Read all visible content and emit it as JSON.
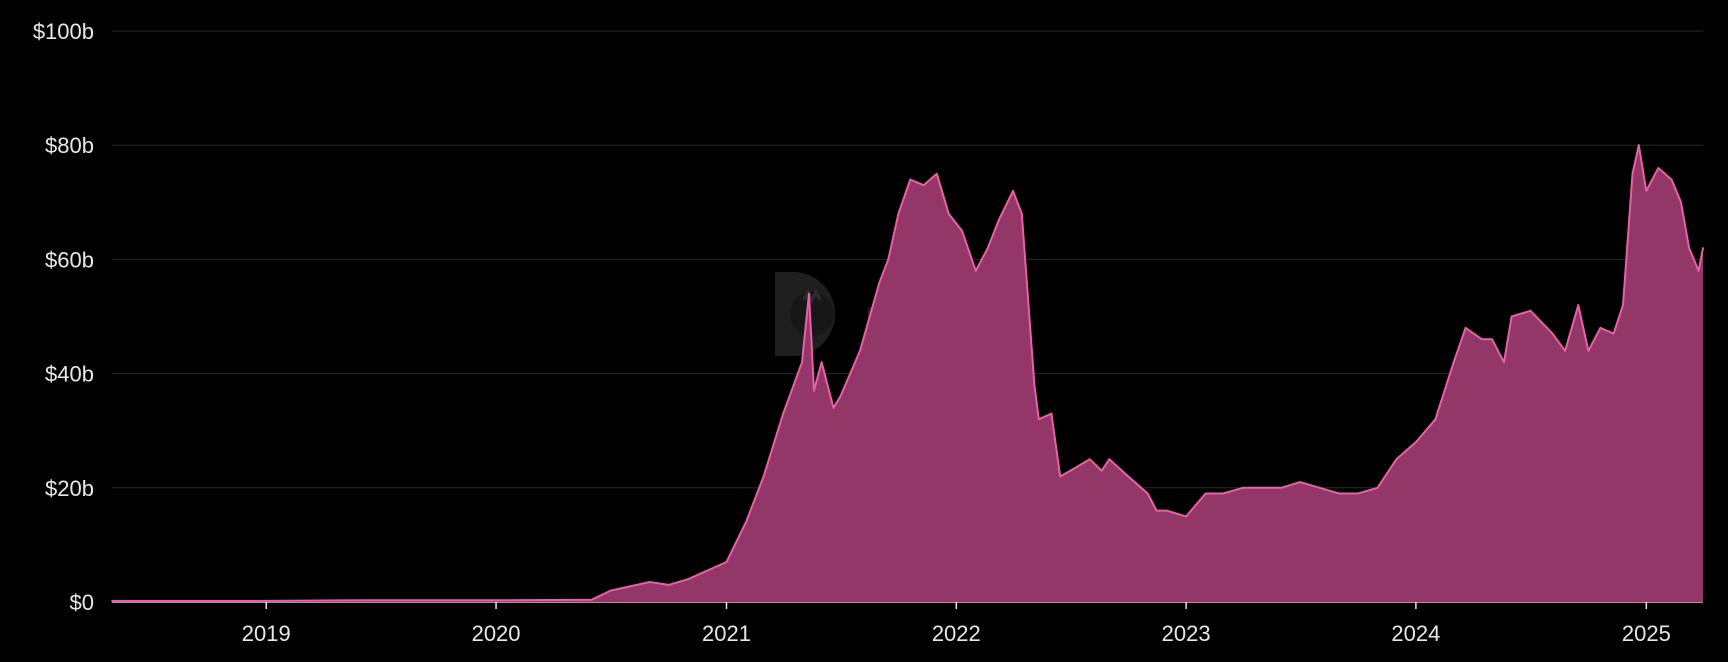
{
  "chart_data": {
    "type": "area",
    "title": "",
    "xlabel": "",
    "ylabel": "",
    "x_ticks": [
      "2019",
      "2020",
      "2021",
      "2022",
      "2023",
      "2024",
      "2025"
    ],
    "y_ticks": [
      "$0",
      "$20b",
      "$40b",
      "$60b",
      "$80b",
      "$100b"
    ],
    "ylim": [
      0,
      100
    ],
    "xlim": [
      "2018-05-01",
      "2025-04-01"
    ],
    "grid": true,
    "legend": "none",
    "series": [
      {
        "color": "#ea5fa8",
        "fill": "#933668",
        "x": [
          "2018-05-01",
          "2019-01-01",
          "2019-06-01",
          "2020-01-01",
          "2020-06-01",
          "2020-07-01",
          "2020-09-01",
          "2020-10-01",
          "2020-11-01",
          "2021-01-01",
          "2021-02-01",
          "2021-03-01",
          "2021-04-01",
          "2021-05-01",
          "2021-05-12",
          "2021-05-20",
          "2021-06-01",
          "2021-06-20",
          "2021-07-01",
          "2021-08-01",
          "2021-09-01",
          "2021-09-15",
          "2021-10-01",
          "2021-10-20",
          "2021-11-10",
          "2021-12-01",
          "2021-12-20",
          "2022-01-10",
          "2022-02-01",
          "2022-02-20",
          "2022-03-10",
          "2022-04-01",
          "2022-04-15",
          "2022-05-05",
          "2022-05-12",
          "2022-06-01",
          "2022-06-15",
          "2022-07-01",
          "2022-08-01",
          "2022-08-20",
          "2022-09-01",
          "2022-10-01",
          "2022-11-01",
          "2022-11-15",
          "2022-12-01",
          "2023-01-01",
          "2023-02-01",
          "2023-03-01",
          "2023-04-01",
          "2023-05-01",
          "2023-06-01",
          "2023-07-01",
          "2023-08-01",
          "2023-09-01",
          "2023-10-01",
          "2023-11-01",
          "2023-12-01",
          "2024-01-01",
          "2024-02-01",
          "2024-03-01",
          "2024-03-20",
          "2024-04-15",
          "2024-05-01",
          "2024-05-20",
          "2024-06-01",
          "2024-07-01",
          "2024-08-05",
          "2024-08-25",
          "2024-09-15",
          "2024-10-01",
          "2024-10-20",
          "2024-11-10",
          "2024-11-25",
          "2024-12-10",
          "2024-12-20",
          "2025-01-01",
          "2025-01-20",
          "2025-02-10",
          "2025-02-25",
          "2025-03-10",
          "2025-03-25",
          "2025-04-01"
        ],
        "values": [
          0.2,
          0.2,
          0.3,
          0.3,
          0.4,
          2,
          3.5,
          3,
          4,
          7,
          14,
          22,
          33,
          42,
          54,
          37,
          42,
          34,
          36,
          44,
          56,
          60,
          68,
          74,
          73,
          75,
          68,
          65,
          58,
          62,
          67,
          72,
          68,
          38,
          32,
          33,
          22,
          23,
          25,
          23,
          25,
          22,
          19,
          16,
          16,
          15,
          19,
          19,
          20,
          20,
          20,
          21,
          20,
          19,
          19,
          20,
          25,
          28,
          32,
          42,
          48,
          46,
          46,
          42,
          50,
          51,
          47,
          44,
          52,
          44,
          48,
          47,
          52,
          75,
          80,
          72,
          76,
          74,
          70,
          62,
          58,
          62
        ]
      }
    ]
  }
}
